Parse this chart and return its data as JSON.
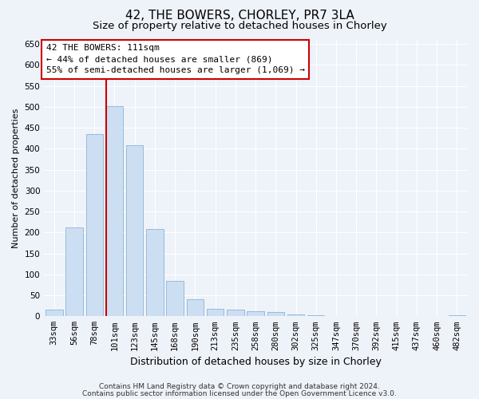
{
  "title": "42, THE BOWERS, CHORLEY, PR7 3LA",
  "subtitle": "Size of property relative to detached houses in Chorley",
  "xlabel": "Distribution of detached houses by size in Chorley",
  "ylabel": "Number of detached properties",
  "categories": [
    "33sqm",
    "56sqm",
    "78sqm",
    "101sqm",
    "123sqm",
    "145sqm",
    "168sqm",
    "190sqm",
    "213sqm",
    "235sqm",
    "258sqm",
    "280sqm",
    "302sqm",
    "325sqm",
    "347sqm",
    "370sqm",
    "392sqm",
    "415sqm",
    "437sqm",
    "460sqm",
    "482sqm"
  ],
  "values": [
    15,
    213,
    435,
    502,
    408,
    208,
    85,
    40,
    18,
    15,
    12,
    10,
    5,
    2,
    1,
    1,
    0,
    0,
    0,
    0,
    3
  ],
  "bar_color": "#ccdff2",
  "bar_edge_color": "#8ab4d8",
  "vline_x": 2.5,
  "vline_color": "#cc0000",
  "annotation_text": "42 THE BOWERS: 111sqm\n← 44% of detached houses are smaller (869)\n55% of semi-detached houses are larger (1,069) →",
  "annotation_box_color": "#cc0000",
  "annotation_bg_color": "#ffffff",
  "ylim": [
    0,
    660
  ],
  "yticks": [
    0,
    50,
    100,
    150,
    200,
    250,
    300,
    350,
    400,
    450,
    500,
    550,
    600,
    650
  ],
  "background_color": "#eef2f9",
  "grid_color": "#ffffff",
  "footer_line1": "Contains HM Land Registry data © Crown copyright and database right 2024.",
  "footer_line2": "Contains public sector information licensed under the Open Government Licence v3.0.",
  "title_fontsize": 11,
  "subtitle_fontsize": 9.5,
  "xlabel_fontsize": 9,
  "ylabel_fontsize": 8,
  "tick_fontsize": 7.5,
  "footer_fontsize": 6.5,
  "annotation_fontsize": 8
}
